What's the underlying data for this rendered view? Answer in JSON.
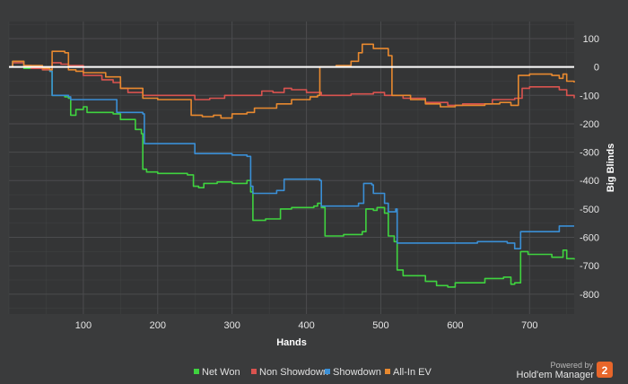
{
  "chart_data": {
    "type": "line",
    "xlabel": "Hands",
    "ylabel": "Big Blinds",
    "xlim": [
      0,
      760
    ],
    "ylim": [
      -870,
      160
    ],
    "x_ticks": [
      100,
      200,
      300,
      400,
      500,
      600,
      700
    ],
    "y_ticks": [
      100,
      0,
      -100,
      -200,
      -300,
      -400,
      -500,
      -600,
      -700,
      -800
    ],
    "grid": true,
    "legend_position": "bottom-center",
    "zero_line": true,
    "colors": {
      "background": "#3a3b3c",
      "plot_background": "#343536",
      "grid": "#4b4c4e",
      "zero_line": "#ffffff"
    },
    "series": [
      {
        "name": "Net Won",
        "color": "#3fd33f",
        "points": [
          [
            0,
            0
          ],
          [
            5,
            20
          ],
          [
            15,
            20
          ],
          [
            20,
            -5
          ],
          [
            45,
            -10
          ],
          [
            55,
            -15
          ],
          [
            58,
            -100
          ],
          [
            75,
            -105
          ],
          [
            80,
            -110
          ],
          [
            83,
            -170
          ],
          [
            90,
            -150
          ],
          [
            100,
            -140
          ],
          [
            105,
            -160
          ],
          [
            140,
            -165
          ],
          [
            150,
            -185
          ],
          [
            170,
            -220
          ],
          [
            178,
            -235
          ],
          [
            180,
            -360
          ],
          [
            185,
            -370
          ],
          [
            200,
            -375
          ],
          [
            240,
            -380
          ],
          [
            248,
            -420
          ],
          [
            255,
            -425
          ],
          [
            262,
            -410
          ],
          [
            280,
            -405
          ],
          [
            300,
            -410
          ],
          [
            320,
            -400
          ],
          [
            325,
            -440
          ],
          [
            328,
            -540
          ],
          [
            345,
            -535
          ],
          [
            365,
            -500
          ],
          [
            380,
            -495
          ],
          [
            398,
            -495
          ],
          [
            410,
            -490
          ],
          [
            415,
            -480
          ],
          [
            420,
            -495
          ],
          [
            425,
            -595
          ],
          [
            450,
            -590
          ],
          [
            475,
            -580
          ],
          [
            480,
            -500
          ],
          [
            490,
            -505
          ],
          [
            495,
            -495
          ],
          [
            505,
            -515
          ],
          [
            510,
            -595
          ],
          [
            518,
            -615
          ],
          [
            522,
            -715
          ],
          [
            530,
            -735
          ],
          [
            560,
            -755
          ],
          [
            575,
            -770
          ],
          [
            590,
            -775
          ],
          [
            600,
            -760
          ],
          [
            640,
            -745
          ],
          [
            665,
            -740
          ],
          [
            675,
            -765
          ],
          [
            680,
            -760
          ],
          [
            688,
            -650
          ],
          [
            698,
            -660
          ],
          [
            730,
            -670
          ],
          [
            745,
            -645
          ],
          [
            750,
            -675
          ],
          [
            760,
            -678
          ]
        ]
      },
      {
        "name": "Non Showdown",
        "color": "#d9534f",
        "points": [
          [
            0,
            0
          ],
          [
            5,
            15
          ],
          [
            20,
            5
          ],
          [
            30,
            -5
          ],
          [
            45,
            -10
          ],
          [
            58,
            15
          ],
          [
            70,
            10
          ],
          [
            80,
            5
          ],
          [
            100,
            -30
          ],
          [
            125,
            -45
          ],
          [
            140,
            -55
          ],
          [
            150,
            -75
          ],
          [
            160,
            -90
          ],
          [
            180,
            -100
          ],
          [
            220,
            -100
          ],
          [
            250,
            -115
          ],
          [
            270,
            -110
          ],
          [
            290,
            -100
          ],
          [
            320,
            -100
          ],
          [
            340,
            -85
          ],
          [
            355,
            -90
          ],
          [
            370,
            -75
          ],
          [
            380,
            -80
          ],
          [
            400,
            -90
          ],
          [
            420,
            -100
          ],
          [
            460,
            -95
          ],
          [
            490,
            -90
          ],
          [
            505,
            -100
          ],
          [
            530,
            -110
          ],
          [
            560,
            -125
          ],
          [
            590,
            -135
          ],
          [
            610,
            -130
          ],
          [
            650,
            -115
          ],
          [
            680,
            -110
          ],
          [
            690,
            -75
          ],
          [
            700,
            -70
          ],
          [
            740,
            -80
          ],
          [
            750,
            -100
          ],
          [
            760,
            -110
          ]
        ]
      },
      {
        "name": "Showdown",
        "color": "#3a8fd6",
        "points": [
          [
            0,
            0
          ],
          [
            5,
            20
          ],
          [
            15,
            20
          ],
          [
            20,
            0
          ],
          [
            45,
            -5
          ],
          [
            55,
            -15
          ],
          [
            58,
            -100
          ],
          [
            80,
            -105
          ],
          [
            83,
            -115
          ],
          [
            140,
            -115
          ],
          [
            145,
            -160
          ],
          [
            180,
            -165
          ],
          [
            182,
            -270
          ],
          [
            230,
            -270
          ],
          [
            250,
            -305
          ],
          [
            300,
            -310
          ],
          [
            320,
            -315
          ],
          [
            325,
            -420
          ],
          [
            328,
            -445
          ],
          [
            360,
            -435
          ],
          [
            370,
            -395
          ],
          [
            418,
            -400
          ],
          [
            420,
            -490
          ],
          [
            470,
            -480
          ],
          [
            477,
            -410
          ],
          [
            488,
            -415
          ],
          [
            490,
            -445
          ],
          [
            505,
            -480
          ],
          [
            510,
            -510
          ],
          [
            520,
            -500
          ],
          [
            522,
            -620
          ],
          [
            600,
            -620
          ],
          [
            630,
            -615
          ],
          [
            670,
            -620
          ],
          [
            680,
            -640
          ],
          [
            688,
            -580
          ],
          [
            720,
            -580
          ],
          [
            740,
            -560
          ],
          [
            760,
            -560
          ]
        ]
      },
      {
        "name": "All-In EV",
        "color": "#e8892f",
        "points": [
          [
            0,
            0
          ],
          [
            5,
            20
          ],
          [
            20,
            5
          ],
          [
            45,
            -5
          ],
          [
            55,
            -10
          ],
          [
            58,
            55
          ],
          [
            75,
            50
          ],
          [
            80,
            -10
          ],
          [
            90,
            -15
          ],
          [
            100,
            -20
          ],
          [
            130,
            -35
          ],
          [
            150,
            -75
          ],
          [
            180,
            -110
          ],
          [
            200,
            -115
          ],
          [
            240,
            -115
          ],
          [
            245,
            -170
          ],
          [
            260,
            -175
          ],
          [
            275,
            -170
          ],
          [
            285,
            -180
          ],
          [
            300,
            -165
          ],
          [
            320,
            -160
          ],
          [
            330,
            -145
          ],
          [
            360,
            -130
          ],
          [
            380,
            -115
          ],
          [
            405,
            -105
          ],
          [
            415,
            -100
          ],
          [
            418,
            0
          ],
          [
            440,
            5
          ],
          [
            460,
            20
          ],
          [
            470,
            50
          ],
          [
            475,
            80
          ],
          [
            490,
            65
          ],
          [
            510,
            40
          ],
          [
            515,
            -100
          ],
          [
            540,
            -115
          ],
          [
            560,
            -130
          ],
          [
            580,
            -140
          ],
          [
            600,
            -135
          ],
          [
            640,
            -130
          ],
          [
            660,
            -125
          ],
          [
            675,
            -135
          ],
          [
            685,
            -30
          ],
          [
            700,
            -25
          ],
          [
            730,
            -30
          ],
          [
            740,
            -40
          ],
          [
            745,
            -25
          ],
          [
            750,
            -50
          ],
          [
            760,
            -55
          ]
        ]
      }
    ]
  },
  "branding": {
    "powered_by": "Powered by",
    "product": "Hold'em Manager",
    "badge": "2"
  }
}
